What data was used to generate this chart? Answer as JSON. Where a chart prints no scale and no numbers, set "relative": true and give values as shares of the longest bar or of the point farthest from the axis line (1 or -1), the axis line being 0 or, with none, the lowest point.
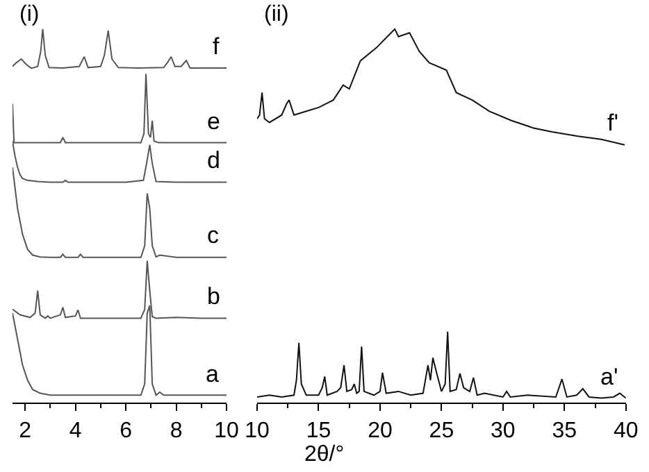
{
  "chart_data": [
    {
      "type": "line",
      "title": "(i)",
      "xlabel": "2θ/°",
      "relative": true,
      "tick_labels": "x",
      "legend": false,
      "marker": "none",
      "line_style": "solid",
      "xlim": [
        1.5,
        10
      ],
      "xticks": [
        2,
        4,
        6,
        8,
        10
      ],
      "series": [
        {
          "name": "a",
          "color": "#555555",
          "x": [
            1.5,
            1.7,
            1.9,
            2.1,
            2.3,
            2.6,
            3,
            4,
            5,
            6,
            6.6,
            6.75,
            6.85,
            6.95,
            7.05,
            7.2,
            7.35,
            7.5,
            8,
            9,
            10
          ],
          "values": [
            0.24,
            0.17,
            0.1,
            0.06,
            0.035,
            0.025,
            0.02,
            0.02,
            0.02,
            0.02,
            0.02,
            0.05,
            0.24,
            0.26,
            0.05,
            0.02,
            0.028,
            0.02,
            0.02,
            0.02,
            0.02
          ]
        },
        {
          "name": "b",
          "color": "#555555",
          "x": [
            1.5,
            1.8,
            2.2,
            2.4,
            2.5,
            2.6,
            2.8,
            2.9,
            3,
            3.4,
            3.5,
            3.6,
            4,
            4.1,
            4.2,
            5,
            6,
            6.6,
            6.75,
            6.85,
            6.95,
            7.05,
            7.2,
            8,
            9,
            10
          ],
          "values": [
            0.25,
            0.235,
            0.228,
            0.24,
            0.3,
            0.235,
            0.226,
            0.232,
            0.226,
            0.235,
            0.255,
            0.228,
            0.232,
            0.248,
            0.226,
            0.226,
            0.226,
            0.226,
            0.25,
            0.38,
            0.3,
            0.23,
            0.226,
            0.228,
            0.226,
            0.226
          ]
        },
        {
          "name": "c",
          "color": "#555555",
          "x": [
            1.5,
            1.7,
            1.9,
            2.1,
            2.3,
            2.6,
            3,
            3.4,
            3.5,
            3.6,
            4.1,
            4.2,
            4.3,
            5,
            6,
            6.6,
            6.75,
            6.85,
            6.95,
            7.05,
            7.2,
            7.35,
            8,
            9,
            10
          ],
          "values": [
            0.63,
            0.52,
            0.45,
            0.41,
            0.395,
            0.39,
            0.389,
            0.389,
            0.397,
            0.389,
            0.389,
            0.397,
            0.389,
            0.389,
            0.389,
            0.389,
            0.42,
            0.56,
            0.52,
            0.42,
            0.39,
            0.395,
            0.389,
            0.389,
            0.389
          ]
        },
        {
          "name": "d",
          "color": "#555555",
          "x": [
            1.5,
            1.6,
            1.7,
            1.8,
            1.9,
            2.1,
            2.5,
            3,
            3.5,
            3.6,
            3.7,
            4,
            5,
            6,
            6.7,
            6.85,
            6.95,
            7.05,
            7.2,
            8,
            9,
            10
          ],
          "values": [
            0.7,
            0.66,
            0.63,
            0.61,
            0.6,
            0.595,
            0.592,
            0.59,
            0.59,
            0.595,
            0.59,
            0.59,
            0.59,
            0.59,
            0.595,
            0.65,
            0.69,
            0.64,
            0.592,
            0.59,
            0.59,
            0.59
          ]
        },
        {
          "name": "e",
          "color": "#555555",
          "x": [
            1.5,
            1.53,
            1.56,
            2,
            3,
            3.4,
            3.5,
            3.6,
            4,
            5,
            6,
            6.6,
            6.72,
            6.8,
            6.9,
            6.98,
            7.05,
            7.12,
            7.3,
            8,
            9,
            10
          ],
          "values": [
            0.8,
            0.75,
            0.696,
            0.696,
            0.696,
            0.696,
            0.71,
            0.696,
            0.696,
            0.696,
            0.696,
            0.696,
            0.72,
            0.88,
            0.72,
            0.71,
            0.755,
            0.7,
            0.696,
            0.696,
            0.696,
            0.696
          ]
        },
        {
          "name": "f",
          "color": "#555555",
          "x": [
            1.5,
            1.65,
            1.85,
            2.05,
            2.25,
            2.5,
            2.62,
            2.7,
            2.8,
            2.95,
            3.5,
            4.15,
            4.35,
            4.5,
            5,
            5.15,
            5.3,
            5.45,
            5.7,
            6.5,
            7.5,
            7.65,
            7.8,
            7.95,
            8.2,
            8.4,
            8.55,
            9,
            10
          ],
          "values": [
            0.9,
            0.91,
            0.92,
            0.905,
            0.895,
            0.9,
            0.94,
            1.0,
            0.93,
            0.897,
            0.896,
            0.9,
            0.926,
            0.897,
            0.9,
            0.93,
            0.996,
            0.92,
            0.897,
            0.896,
            0.897,
            0.91,
            0.926,
            0.9,
            0.9,
            0.916,
            0.896,
            0.896,
            0.896
          ]
        }
      ]
    },
    {
      "type": "line",
      "title": "(ii)",
      "relative": true,
      "tick_labels": "x",
      "legend": false,
      "marker": "none",
      "line_style": "solid",
      "xlim": [
        10,
        40
      ],
      "xticks": [
        10,
        15,
        20,
        25,
        30,
        35,
        40
      ],
      "series": [
        {
          "name": "a'",
          "color": "#111111",
          "x": [
            10,
            11,
            12,
            13,
            13.2,
            13.4,
            13.6,
            14,
            15,
            15.3,
            15.5,
            15.7,
            16.5,
            16.8,
            17.07,
            17.3,
            17.7,
            17.9,
            18.1,
            18.3,
            18.5,
            18.7,
            19.5,
            20,
            20.2,
            20.5,
            21.5,
            22.5,
            23.5,
            23.9,
            24.1,
            24.3,
            24.6,
            25,
            25.3,
            25.5,
            25.7,
            26.2,
            26.5,
            26.8,
            27.3,
            27.6,
            27.9,
            28.5,
            30,
            30.3,
            30.6,
            32,
            34.3,
            34.8,
            35.2,
            36,
            36.5,
            37,
            38,
            39,
            39.5,
            40
          ],
          "values": [
            0.015,
            0.02,
            0.015,
            0.02,
            0.06,
            0.16,
            0.05,
            0.02,
            0.02,
            0.04,
            0.07,
            0.02,
            0.03,
            0.04,
            0.1,
            0.03,
            0.035,
            0.05,
            0.025,
            0.03,
            0.15,
            0.03,
            0.02,
            0.03,
            0.08,
            0.025,
            0.03,
            0.02,
            0.025,
            0.1,
            0.06,
            0.12,
            0.08,
            0.03,
            0.05,
            0.19,
            0.03,
            0.035,
            0.078,
            0.04,
            0.03,
            0.067,
            0.02,
            0.025,
            0.015,
            0.03,
            0.015,
            0.02,
            0.015,
            0.063,
            0.015,
            0.02,
            0.037,
            0.015,
            0.012,
            0.015,
            0.025,
            0.012
          ]
        },
        {
          "name": "f'",
          "color": "#111111",
          "x": [
            10,
            10.2,
            10.4,
            10.6,
            11,
            12,
            12.4,
            12.6,
            13,
            14,
            15,
            16.2,
            17,
            17.5,
            18.4,
            19.7,
            20.9,
            21.2,
            21.5,
            22.4,
            23.2,
            24,
            25.4,
            26.2,
            27.5,
            28.9,
            30.7,
            32.5,
            34,
            36.1,
            38,
            39.9
          ],
          "values": [
            0.76,
            0.77,
            0.83,
            0.76,
            0.75,
            0.77,
            0.8,
            0.81,
            0.77,
            0.78,
            0.79,
            0.81,
            0.85,
            0.84,
            0.915,
            0.95,
            0.99,
            1.0,
            0.98,
            0.99,
            0.94,
            0.91,
            0.89,
            0.83,
            0.81,
            0.78,
            0.755,
            0.735,
            0.725,
            0.713,
            0.705,
            0.69
          ]
        }
      ]
    }
  ]
}
